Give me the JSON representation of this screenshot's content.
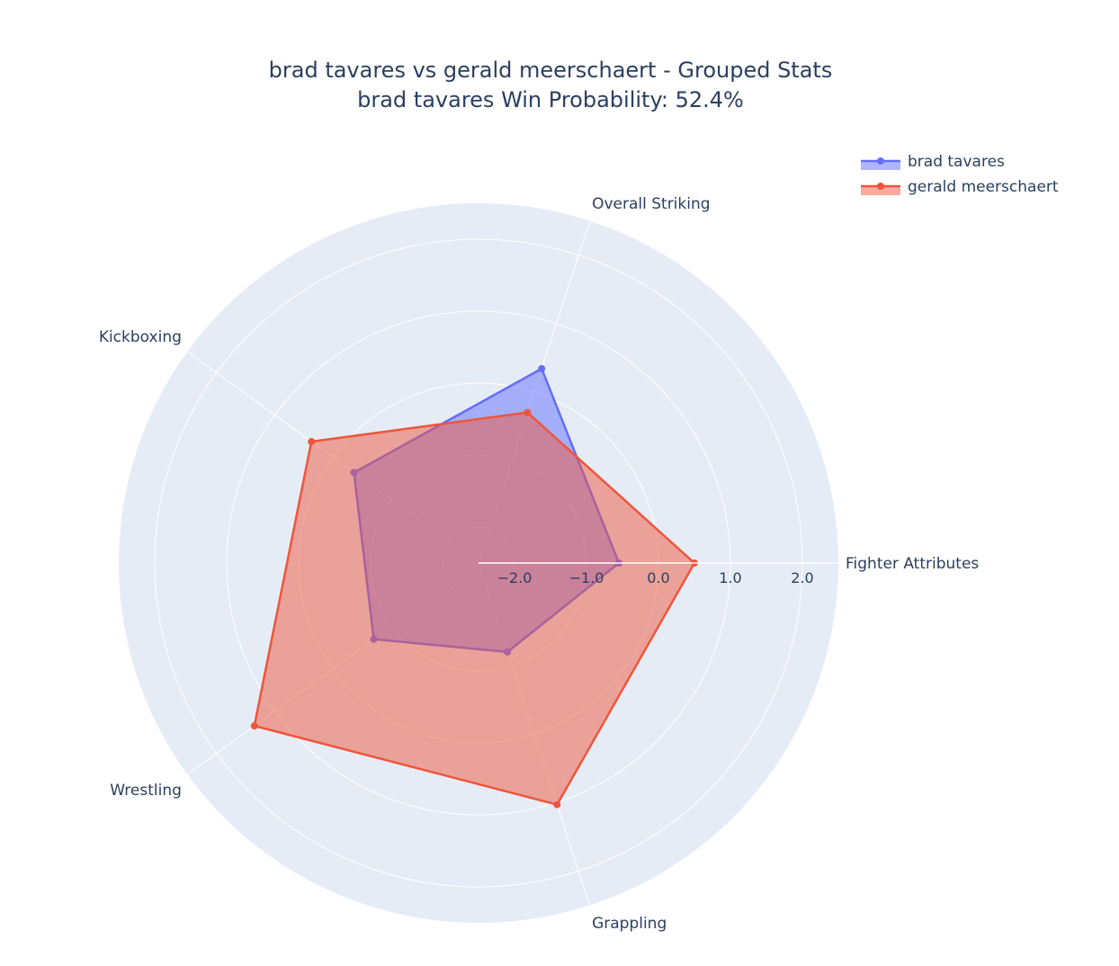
{
  "chart_data": {
    "type": "radar",
    "title": "brad tavares vs gerald meerschaert - Grouped Stats",
    "subtitle": "brad tavares Win Probability: 52.4%",
    "axes": [
      "Fighter Attributes",
      "Overall Striking",
      "Kickboxing",
      "Wrestling",
      "Grappling"
    ],
    "radial_ticks": [
      "−2.0",
      "−1.0",
      "0.0",
      "1.0",
      "2.0"
    ],
    "radial_tick_values": [
      -2,
      -1,
      0,
      1,
      2
    ],
    "radial_range": [
      -2.5,
      2.5
    ],
    "series": [
      {
        "name": "brad tavares",
        "color": "#636efa",
        "values": [
          -0.55,
          0.34,
          -0.36,
          -0.7,
          -1.2
        ]
      },
      {
        "name": "gerald meerschaert",
        "color": "#ef553b",
        "values": [
          0.5,
          -0.3,
          0.37,
          1.35,
          1.03
        ]
      }
    ],
    "legend_position": "top-right",
    "grid": true
  }
}
